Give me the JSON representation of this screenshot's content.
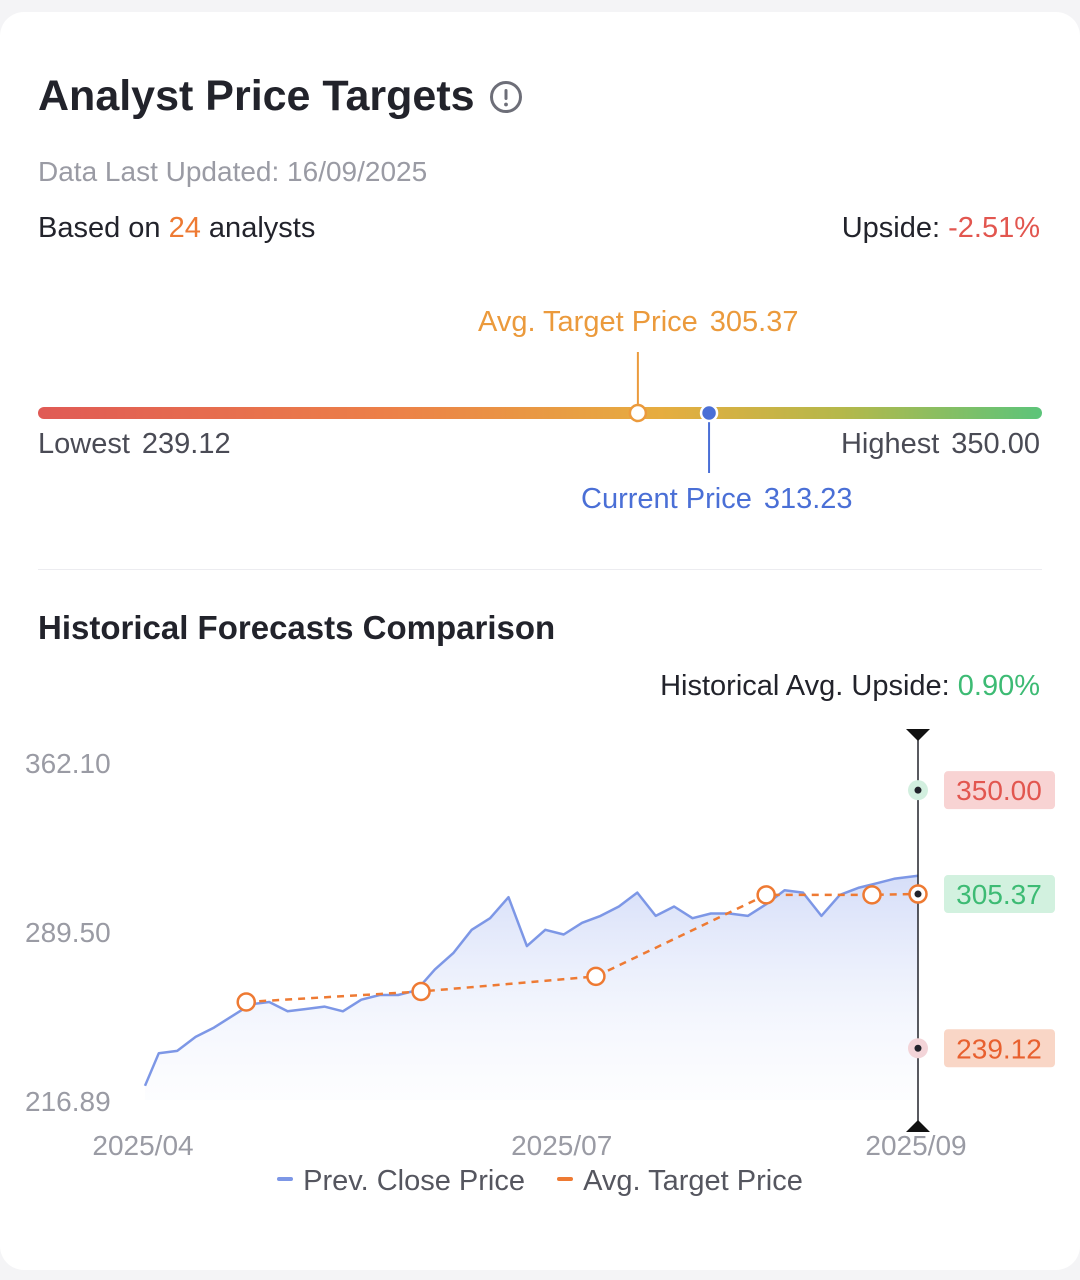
{
  "header": {
    "title": "Analyst Price Targets",
    "info_icon": "info-circle-icon",
    "updated_prefix": "Data Last Updated: ",
    "updated_date": "16/09/2025",
    "based_on_prefix": "Based on ",
    "analyst_count": "24",
    "based_on_suffix": " analysts",
    "upside_label": "Upside: ",
    "upside_value": "-2.51%"
  },
  "range": {
    "avg_label": "Avg. Target Price",
    "avg_value": "305.37",
    "current_label": "Current Price",
    "current_value": "313.23",
    "low_label": "Lowest",
    "low_value": "239.12",
    "high_label": "Highest",
    "high_value": "350.00",
    "low_num": 239.12,
    "high_num": 350.0,
    "avg_num": 305.37,
    "current_num": 313.23
  },
  "history": {
    "section_title": "Historical Forecasts Comparison",
    "hist_upside_label": "Historical Avg. Upside: ",
    "hist_upside_value": "0.90%"
  },
  "legend": {
    "prev_close": "Prev. Close Price",
    "avg_target": "Avg. Target Price"
  },
  "colors": {
    "close_line": "#7d97e6",
    "target_line": "#ee7a33",
    "positive": "#3dbb74",
    "negative": "#e2564f"
  },
  "chart_data": {
    "type": "line",
    "y_ticks": [
      "362.10",
      "289.50",
      "216.89"
    ],
    "ylim": [
      216.89,
      362.1
    ],
    "x_ticks": [
      "2025/04",
      "2025/07",
      "2025/09"
    ],
    "x_tick_dates": [
      "2025-04-01",
      "2025-07-01",
      "2025-09-16"
    ],
    "series": [
      {
        "name": "Prev. Close Price",
        "x": [
          "2025-04-01",
          "2025-04-04",
          "2025-04-08",
          "2025-04-12",
          "2025-04-16",
          "2025-04-20",
          "2025-04-24",
          "2025-04-28",
          "2025-05-02",
          "2025-05-06",
          "2025-05-10",
          "2025-05-14",
          "2025-05-18",
          "2025-05-22",
          "2025-05-26",
          "2025-05-30",
          "2025-06-03",
          "2025-06-07",
          "2025-06-11",
          "2025-06-15",
          "2025-06-19",
          "2025-06-23",
          "2025-06-27",
          "2025-07-01",
          "2025-07-05",
          "2025-07-09",
          "2025-07-13",
          "2025-07-17",
          "2025-07-21",
          "2025-07-25",
          "2025-07-29",
          "2025-08-02",
          "2025-08-06",
          "2025-08-10",
          "2025-08-14",
          "2025-08-18",
          "2025-08-22",
          "2025-08-26",
          "2025-08-30",
          "2025-09-03",
          "2025-09-07",
          "2025-09-11",
          "2025-09-16"
        ],
        "values": [
          223.0,
          237.0,
          238.0,
          244.0,
          248.0,
          253.0,
          258.0,
          259.0,
          255.0,
          256.0,
          257.0,
          255.0,
          260.0,
          262.0,
          262.0,
          264.0,
          273.0,
          280.0,
          290.0,
          295.0,
          304.0,
          283.0,
          290.0,
          288.0,
          293.0,
          296.0,
          300.0,
          306.0,
          296.0,
          300.0,
          295.0,
          297.0,
          297.0,
          296.0,
          301.0,
          307.0,
          306.0,
          296.0,
          305.0,
          308.0,
          310.0,
          312.0,
          313.23
        ]
      },
      {
        "name": "Avg. Target Price",
        "x": [
          "2025-04-23",
          "2025-05-31",
          "2025-07-08",
          "2025-08-14",
          "2025-09-06",
          "2025-09-16"
        ],
        "values": [
          259.0,
          263.5,
          270.0,
          305.0,
          305.0,
          305.37
        ]
      }
    ],
    "marker_labels": [
      {
        "label": "350.00",
        "value": 350.0,
        "tone": "negative"
      },
      {
        "label": "305.37",
        "value": 305.37,
        "tone": "positive"
      },
      {
        "label": "239.12",
        "value": 239.12,
        "tone": "target"
      }
    ]
  }
}
